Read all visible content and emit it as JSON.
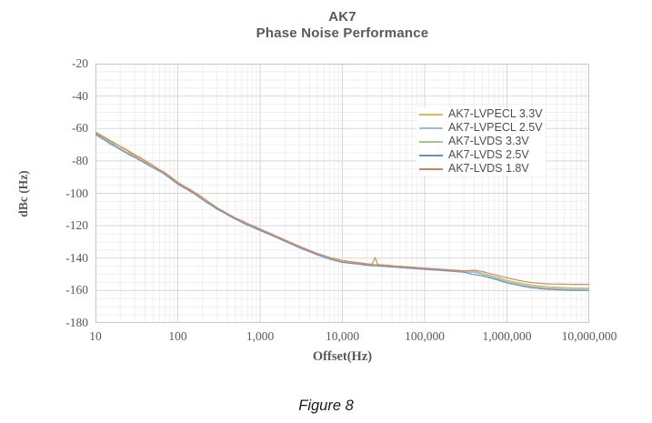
{
  "title": {
    "line1": "AK7",
    "line2": "Phase Noise Performance"
  },
  "figure_caption": "Figure 8",
  "chart_data": {
    "type": "line",
    "title": "AK7 Phase Noise Performance",
    "xlabel": "Offset(Hz)",
    "ylabel": "dBc (Hz)",
    "x_scale": "log",
    "xlim": [
      10,
      10000000
    ],
    "ylim": [
      -180,
      -20
    ],
    "y_major_step": 20,
    "y_minor_step": 5,
    "grid": true,
    "legend_position": "inside upper right",
    "x_tick_labels": [
      "10",
      "100",
      "1,000",
      "10,000",
      "100,000",
      "1,000,000",
      "10,000,000"
    ],
    "y_tick_labels": [
      "-20",
      "-40",
      "-60",
      "-80",
      "-100",
      "-120",
      "-140",
      "-160",
      "-180"
    ],
    "grid_colors": {
      "major": "#d7d7d7",
      "minor": "#efefef",
      "border": "#c8c8c8"
    },
    "f": [
      10,
      15,
      20,
      30,
      50,
      70,
      100,
      150,
      200,
      300,
      500,
      700,
      1000,
      2000,
      3000,
      5000,
      7000,
      10000,
      20000,
      23000,
      25000,
      27000,
      30000,
      50000,
      70000,
      100000,
      150000,
      200000,
      300000,
      400000,
      500000,
      700000,
      1000000,
      1500000,
      2000000,
      3000000,
      5000000,
      7000000,
      10000000
    ],
    "series": [
      {
        "name": "AK7-LVPECL 3.3V",
        "color": "#e2ba4e",
        "dB": [
          -62.3,
          -67.5,
          -71.3,
          -76.3,
          -82.9,
          -87.4,
          -93.4,
          -98.7,
          -102.9,
          -108.9,
          -115.0,
          -118.5,
          -122.0,
          -128.5,
          -132.5,
          -137.0,
          -139.6,
          -141.6,
          -143.6,
          -143.8,
          -143.9,
          -144.0,
          -144.2,
          -145.0,
          -145.5,
          -146.1,
          -146.7,
          -147.2,
          -147.8,
          -148.1,
          -149.2,
          -151.6,
          -154.1,
          -156.1,
          -157.2,
          -158.2,
          -158.7,
          -158.9,
          -159.0
        ]
      },
      {
        "name": "AK7-LVPECL 2.5V",
        "color": "#9bbfd9",
        "dB": [
          -64.2,
          -69.9,
          -73.4,
          -78.1,
          -84.1,
          -88.5,
          -94.4,
          -99.7,
          -103.9,
          -109.9,
          -115.9,
          -119.4,
          -122.9,
          -129.4,
          -133.4,
          -137.9,
          -140.4,
          -142.4,
          -144.4,
          -144.6,
          -144.7,
          -144.8,
          -145.0,
          -145.8,
          -146.3,
          -146.9,
          -147.5,
          -148.0,
          -148.6,
          -148.9,
          -150.0,
          -152.4,
          -154.9,
          -156.9,
          -158.0,
          -158.9,
          -159.4,
          -159.6,
          -159.7
        ]
      },
      {
        "name": "AK7-LVDS 3.3V",
        "color": "#a5c78e",
        "dB": [
          -62.8,
          -68.0,
          -71.8,
          -76.8,
          -83.3,
          -87.8,
          -93.8,
          -99.1,
          -103.3,
          -109.3,
          -115.3,
          -118.8,
          -122.3,
          -128.8,
          -132.8,
          -137.3,
          -139.8,
          -141.8,
          -143.8,
          -144.0,
          -144.1,
          -144.2,
          -144.4,
          -145.1,
          -145.6,
          -146.2,
          -146.8,
          -147.3,
          -147.9,
          -148.2,
          -149.3,
          -151.4,
          -153.8,
          -155.6,
          -156.7,
          -157.6,
          -158.1,
          -158.3,
          -158.4
        ]
      },
      {
        "name": "AK7-LVDS 2.5V",
        "color": "#6c8ebf",
        "dB": [
          -63.5,
          -68.7,
          -72.5,
          -77.5,
          -84.0,
          -88.5,
          -94.5,
          -99.8,
          -104.0,
          -110.0,
          -116.0,
          -119.5,
          -123.0,
          -129.5,
          -133.5,
          -138.0,
          -140.5,
          -142.5,
          -144.5,
          -144.7,
          -144.8,
          -144.9,
          -145.1,
          -145.9,
          -146.4,
          -147.0,
          -147.6,
          -148.1,
          -148.8,
          -150.3,
          -151.0,
          -153.0,
          -155.4,
          -157.3,
          -158.4,
          -159.3,
          -159.8,
          -160.0,
          -160.1
        ]
      },
      {
        "name": "AK7-LVDS 1.8V",
        "color": "#d9825a",
        "dB": [
          -62.7,
          -67.9,
          -71.7,
          -76.7,
          -83.2,
          -87.7,
          -93.7,
          -99.0,
          -103.2,
          -109.2,
          -115.2,
          -118.7,
          -122.2,
          -128.7,
          -132.7,
          -137.2,
          -139.7,
          -141.7,
          -143.7,
          -143.9,
          -139.8,
          -144.1,
          -144.3,
          -145.1,
          -145.6,
          -146.2,
          -146.8,
          -147.3,
          -147.9,
          -147.6,
          -148.3,
          -150.3,
          -152.3,
          -154.0,
          -155.0,
          -155.8,
          -156.0,
          -156.1,
          -156.1
        ]
      }
    ]
  }
}
